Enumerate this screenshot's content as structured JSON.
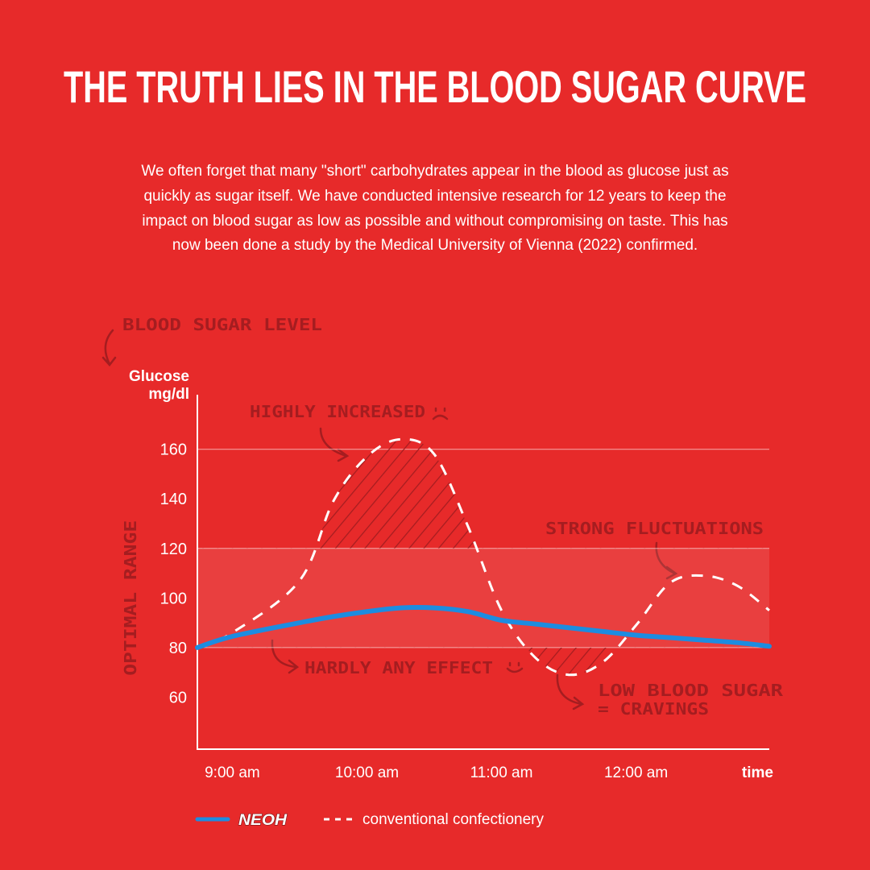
{
  "title": "THE TRUTH LIES IN THE BLOOD SUGAR CURVE",
  "paragraph": [
    "We often forget that many \"short\" carbohydrates appear in the blood as glucose just as",
    "quickly as sugar itself. We have conducted intensive research for 12 years to keep the",
    "impact on blood sugar as low as possible and without compromising on taste. This has",
    "now been done a study by the Medical University of Vienna (2022) confirmed."
  ],
  "chart_data": {
    "type": "line",
    "y_label": [
      "Glucose",
      "mg/dl"
    ],
    "x_label": "time",
    "y_annotation": "BLOOD SUGAR LEVEL",
    "x": [
      8.74,
      9,
      9.5,
      9.75,
      10,
      10.25,
      10.5,
      10.75,
      11,
      11.25,
      11.5,
      11.75,
      12,
      12.25,
      12.5,
      12.75,
      12.99
    ],
    "xlim": [
      8.74,
      12.99
    ],
    "xticks": [
      {
        "value": 9,
        "label": "9:00 am"
      },
      {
        "value": 10,
        "label": "10:00 am"
      },
      {
        "value": 11,
        "label": "11:00 am"
      },
      {
        "value": 12,
        "label": "12:00 am"
      }
    ],
    "ylim": [
      39,
      182
    ],
    "yticks": [
      60,
      80,
      100,
      120,
      140,
      160
    ],
    "grid_lines": [
      160
    ],
    "band": {
      "label": "OPTIMAL RANGE",
      "range": [
        80,
        120
      ]
    },
    "series": [
      {
        "name": "NEOH",
        "color": "#1d8ce0",
        "style": "solid",
        "values": [
          80,
          84.5,
          90,
          92.5,
          94.5,
          96,
          96,
          94.5,
          91,
          89.5,
          88,
          86.5,
          85,
          84,
          83,
          82,
          80.5
        ]
      },
      {
        "name": "conventional confectionery",
        "color": "#ffffff",
        "style": "dashed",
        "values": [
          80,
          86,
          107,
          139,
          157,
          164,
          158,
          129,
          95,
          76,
          69,
          74,
          89,
          106,
          109,
          105,
          95
        ]
      }
    ],
    "annotations": [
      "HIGHLY INCREASED",
      "STRONG FLUCTUATIONS",
      "HARDLY ANY EFFECT",
      "LOW BLOOD SUGAR",
      "= CRAVINGS"
    ]
  }
}
